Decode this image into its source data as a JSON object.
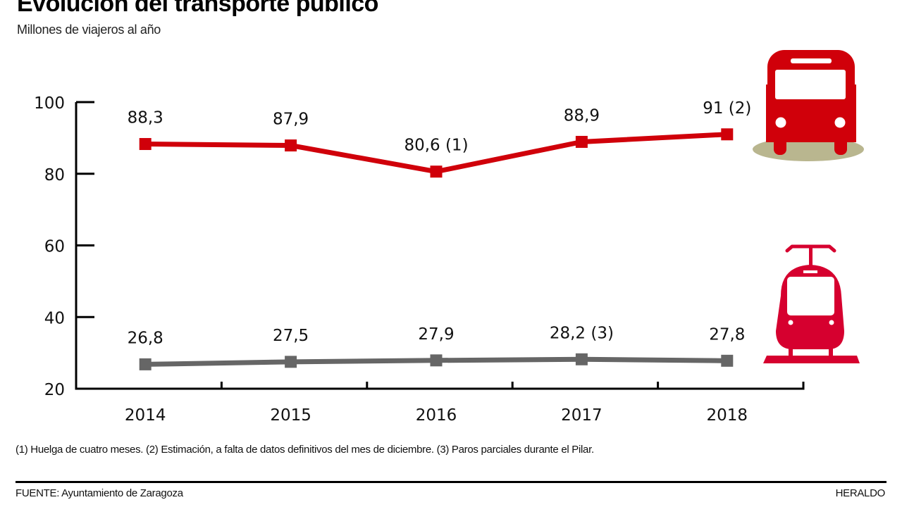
{
  "header": {
    "title": "Evolución del transporte público",
    "subtitle": "Millones de viajeros al año"
  },
  "footer": {
    "footnote": "(1) Huelga de cuatro meses. (2) Estimación, a falta de datos definitivos del mes de diciembre. (3) Paros parciales durante el Pilar.",
    "source": "FUENTE: Ayuntamiento de Zaragoza",
    "brand": "HERALDO"
  },
  "colors": {
    "bus": "#d0000a",
    "tram": "#666666",
    "tram_icon": "#d6002f",
    "bus_shadow": "#b9b68f",
    "axis": "#000000"
  },
  "chart_data": {
    "type": "line",
    "title": "Evolución del transporte público",
    "subtitle": "Millones de viajeros al año",
    "xlabel": "",
    "ylabel": "Millones de viajeros al año",
    "categories": [
      "2014",
      "2015",
      "2016",
      "2017",
      "2018"
    ],
    "ylim": [
      20,
      100
    ],
    "yticks": [
      100,
      80,
      60,
      40,
      20
    ],
    "grid": false,
    "legend": "icons-right",
    "series": [
      {
        "name": "Autobús",
        "icon": "bus-icon",
        "color": "#d0000a",
        "values": [
          88.3,
          87.9,
          80.6,
          88.9,
          91
        ],
        "labels": [
          "88,3",
          "87,9",
          "80,6 (1)",
          "88,9",
          "91 (2)"
        ]
      },
      {
        "name": "Tranvía",
        "icon": "tram-icon",
        "color": "#666666",
        "values": [
          26.8,
          27.5,
          27.9,
          28.2,
          27.8
        ],
        "labels": [
          "26,8",
          "27,5",
          "27,9",
          "28,2 (3)",
          "27,8"
        ]
      }
    ]
  }
}
